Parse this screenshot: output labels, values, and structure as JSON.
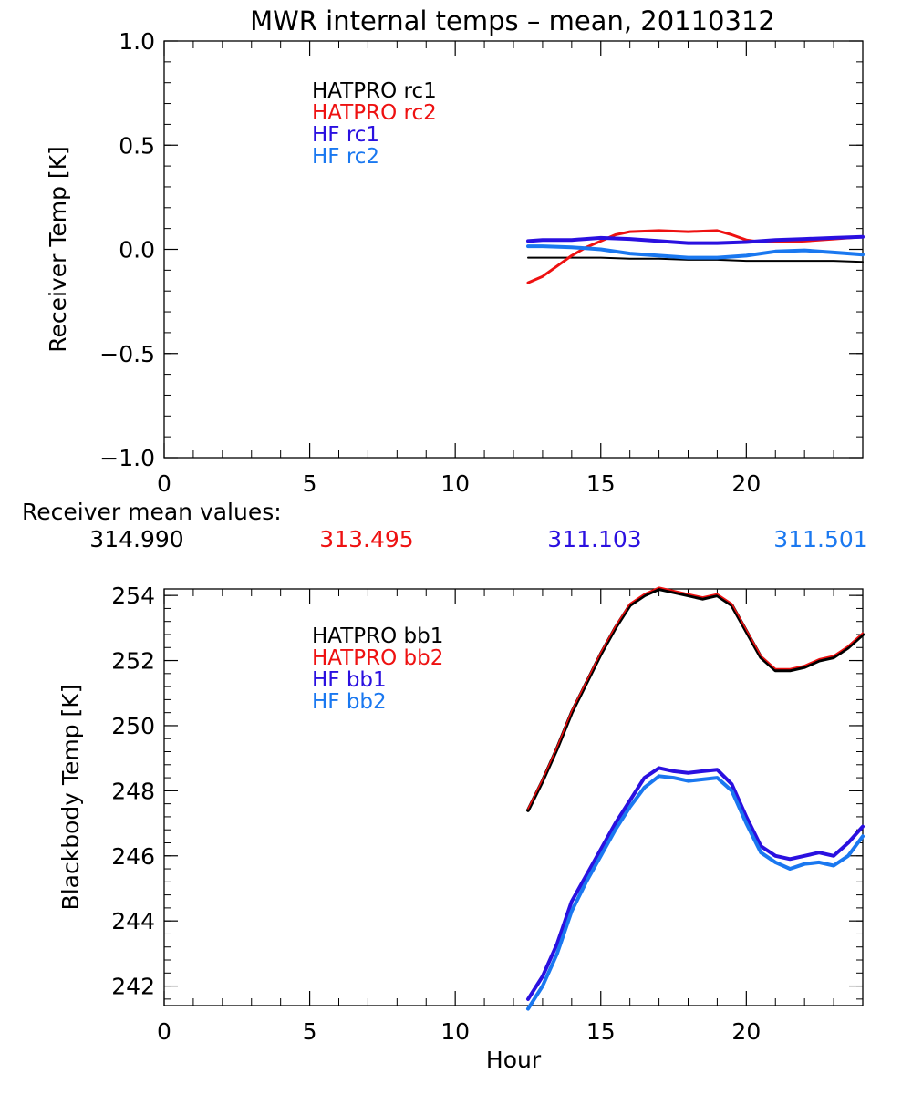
{
  "title": "MWR internal temps – mean, 20110312",
  "colors": {
    "axis": "#000000",
    "black": "#000000",
    "red": "#ee1111",
    "blue": "#2a10e0",
    "lightblue": "#1a78f0"
  },
  "means": {
    "label": "Receiver mean values:",
    "values": [
      {
        "text": "314.990",
        "color": "#000000"
      },
      {
        "text": "313.495",
        "color": "#ee1111"
      },
      {
        "text": "311.103",
        "color": "#2a10e0"
      },
      {
        "text": "311.501",
        "color": "#1a78f0"
      }
    ]
  },
  "chart_data": [
    {
      "type": "line",
      "title": "MWR internal temps – mean, 20110312",
      "xlabel": "",
      "ylabel": "Receiver Temp [K]",
      "xlim": [
        0,
        24
      ],
      "ylim": [
        -1.0,
        1.0
      ],
      "xticks": [
        0,
        5,
        10,
        15,
        20
      ],
      "xtick_labels": [
        "0",
        "5",
        "10",
        "15",
        "20"
      ],
      "yticks": [
        -1.0,
        -0.5,
        0.0,
        0.5,
        1.0
      ],
      "ytick_labels": [
        "−1.0",
        "−0.5",
        "0.0",
        "0.5",
        "1.0"
      ],
      "legend": "top-left",
      "series": [
        {
          "name": "HATPRO rc1",
          "color": "#000000",
          "width": 2,
          "x": [
            12.5,
            13,
            14,
            15,
            16,
            17,
            18,
            19,
            20,
            21,
            22,
            23,
            24
          ],
          "y": [
            -0.04,
            -0.04,
            -0.04,
            -0.04,
            -0.045,
            -0.045,
            -0.05,
            -0.05,
            -0.055,
            -0.055,
            -0.055,
            -0.055,
            -0.06
          ]
        },
        {
          "name": "HATPRO rc2",
          "color": "#ee1111",
          "width": 3,
          "x": [
            12.5,
            13,
            13.5,
            14,
            14.5,
            15,
            15.5,
            16,
            17,
            18,
            19,
            19.5,
            20,
            20.5,
            21,
            22,
            23,
            24
          ],
          "y": [
            -0.16,
            -0.13,
            -0.08,
            -0.03,
            0.01,
            0.04,
            0.07,
            0.085,
            0.09,
            0.085,
            0.09,
            0.07,
            0.045,
            0.035,
            0.035,
            0.04,
            0.05,
            0.06
          ]
        },
        {
          "name": "HF rc1",
          "color": "#2a10e0",
          "width": 4,
          "x": [
            12.5,
            13,
            14,
            15,
            16,
            17,
            18,
            19,
            20,
            21,
            22,
            23,
            24
          ],
          "y": [
            0.04,
            0.045,
            0.045,
            0.055,
            0.05,
            0.04,
            0.03,
            0.03,
            0.035,
            0.045,
            0.05,
            0.055,
            0.06
          ]
        },
        {
          "name": "HF rc2",
          "color": "#1a78f0",
          "width": 4,
          "x": [
            12.5,
            13,
            14,
            15,
            16,
            17,
            18,
            19,
            20,
            21,
            22,
            23,
            24
          ],
          "y": [
            0.015,
            0.015,
            0.01,
            0.0,
            -0.02,
            -0.03,
            -0.04,
            -0.04,
            -0.03,
            -0.01,
            -0.005,
            -0.015,
            -0.025
          ]
        }
      ]
    },
    {
      "type": "line",
      "title": "",
      "xlabel": "Hour",
      "ylabel": "Blackbody Temp [K]",
      "xlim": [
        0,
        24
      ],
      "ylim": [
        241.4,
        254.2
      ],
      "xticks": [
        0,
        5,
        10,
        15,
        20
      ],
      "xtick_labels": [
        "0",
        "5",
        "10",
        "15",
        "20"
      ],
      "yticks": [
        242,
        244,
        246,
        248,
        250,
        252,
        254
      ],
      "ytick_labels": [
        "242",
        "244",
        "246",
        "248",
        "250",
        "252",
        "254"
      ],
      "legend": "top-left",
      "series": [
        {
          "name": "HATPRO bb1",
          "color": "#000000",
          "width": 4,
          "x": [
            12.5,
            13,
            13.5,
            14,
            14.5,
            15,
            15.5,
            16,
            16.5,
            17,
            17.5,
            18,
            18.5,
            19,
            19.5,
            20,
            20.5,
            21,
            21.5,
            22,
            22.5,
            23,
            23.5,
            24
          ],
          "y": [
            247.4,
            248.3,
            249.3,
            250.4,
            251.3,
            252.2,
            253.0,
            253.7,
            254.0,
            254.2,
            254.1,
            254.0,
            253.9,
            254.0,
            253.7,
            252.9,
            252.1,
            251.7,
            251.7,
            251.8,
            252.0,
            252.1,
            252.4,
            252.8
          ]
        },
        {
          "name": "HATPRO bb2",
          "color": "#ee1111",
          "width": 1.6,
          "x": [
            12.5,
            13,
            13.5,
            14,
            14.5,
            15,
            15.5,
            16,
            16.5,
            17,
            17.5,
            18,
            18.5,
            19,
            19.5,
            20,
            20.5,
            21,
            21.5,
            22,
            22.5,
            23,
            23.5,
            24
          ],
          "y": [
            247.45,
            248.35,
            249.35,
            250.45,
            251.35,
            252.25,
            253.05,
            253.75,
            254.05,
            254.25,
            254.15,
            254.05,
            253.95,
            254.05,
            253.75,
            252.95,
            252.15,
            251.75,
            251.75,
            251.85,
            252.05,
            252.15,
            252.45,
            252.85
          ]
        },
        {
          "name": "HF bb1",
          "color": "#2a10e0",
          "width": 4,
          "x": [
            12.5,
            13,
            13.5,
            14,
            14.5,
            15,
            15.5,
            16,
            16.5,
            17,
            17.5,
            18,
            18.5,
            19,
            19.5,
            20,
            20.5,
            21,
            21.5,
            22,
            22.5,
            23,
            23.5,
            24
          ],
          "y": [
            241.6,
            242.3,
            243.3,
            244.6,
            245.4,
            246.2,
            247.0,
            247.7,
            248.4,
            248.7,
            248.6,
            248.55,
            248.6,
            248.65,
            248.2,
            247.2,
            246.3,
            246.0,
            245.9,
            246.0,
            246.1,
            246.0,
            246.4,
            246.9
          ]
        },
        {
          "name": "HF bb2",
          "color": "#1a78f0",
          "width": 4,
          "x": [
            12.5,
            13,
            13.5,
            14,
            14.5,
            15,
            15.5,
            16,
            16.5,
            17,
            17.5,
            18,
            18.5,
            19,
            19.5,
            20,
            20.5,
            21,
            21.5,
            22,
            22.5,
            23,
            23.5,
            24
          ],
          "y": [
            241.3,
            242.0,
            243.0,
            244.3,
            245.2,
            246.0,
            246.8,
            247.5,
            248.1,
            248.45,
            248.4,
            248.3,
            248.35,
            248.4,
            248.0,
            247.0,
            246.1,
            245.8,
            245.6,
            245.75,
            245.8,
            245.7,
            246.0,
            246.6
          ]
        }
      ]
    }
  ]
}
